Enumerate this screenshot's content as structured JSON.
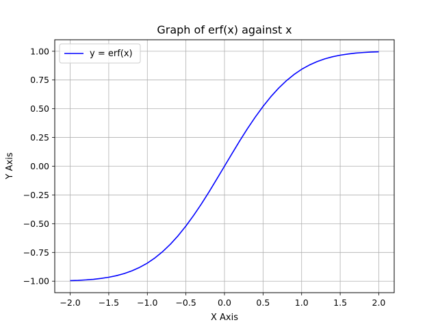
{
  "chart_data": {
    "type": "line",
    "title": "Graph of erf(x) against x",
    "xlabel": "X Axis",
    "ylabel": "Y Axis",
    "xlim": [
      -2.2,
      2.2
    ],
    "ylim": [
      -1.1,
      1.1
    ],
    "xticks": [
      -2.0,
      -1.5,
      -1.0,
      -0.5,
      0.0,
      0.5,
      1.0,
      1.5,
      2.0
    ],
    "xtick_labels": [
      "−2.0",
      "−1.5",
      "−1.0",
      "−0.5",
      "0.0",
      "0.5",
      "1.0",
      "1.5",
      "2.0"
    ],
    "yticks": [
      -1.0,
      -0.75,
      -0.5,
      -0.25,
      0.0,
      0.25,
      0.5,
      0.75,
      1.0
    ],
    "ytick_labels": [
      "−1.00",
      "−0.75",
      "−0.50",
      "−0.25",
      "0.00",
      "0.25",
      "0.50",
      "0.75",
      "1.00"
    ],
    "grid": true,
    "legend_position": "top-left",
    "series": [
      {
        "name": "y = erf(x)",
        "color": "#0000ff",
        "x": [
          -2.0,
          -1.9,
          -1.8,
          -1.7,
          -1.6,
          -1.5,
          -1.4,
          -1.3,
          -1.2,
          -1.1,
          -1.0,
          -0.9,
          -0.8,
          -0.7,
          -0.6,
          -0.5,
          -0.4,
          -0.3,
          -0.2,
          -0.1,
          0.0,
          0.1,
          0.2,
          0.3,
          0.4,
          0.5,
          0.6,
          0.7,
          0.8,
          0.9,
          1.0,
          1.1,
          1.2,
          1.3,
          1.4,
          1.5,
          1.6,
          1.7,
          1.8,
          1.9,
          2.0
        ],
        "y": [
          -0.995,
          -0.993,
          -0.989,
          -0.984,
          -0.976,
          -0.966,
          -0.952,
          -0.934,
          -0.91,
          -0.88,
          -0.843,
          -0.797,
          -0.742,
          -0.678,
          -0.604,
          -0.52,
          -0.428,
          -0.329,
          -0.223,
          -0.112,
          0.0,
          0.112,
          0.223,
          0.329,
          0.428,
          0.52,
          0.604,
          0.678,
          0.742,
          0.797,
          0.843,
          0.88,
          0.91,
          0.934,
          0.952,
          0.966,
          0.976,
          0.984,
          0.989,
          0.993,
          0.995
        ]
      }
    ]
  }
}
